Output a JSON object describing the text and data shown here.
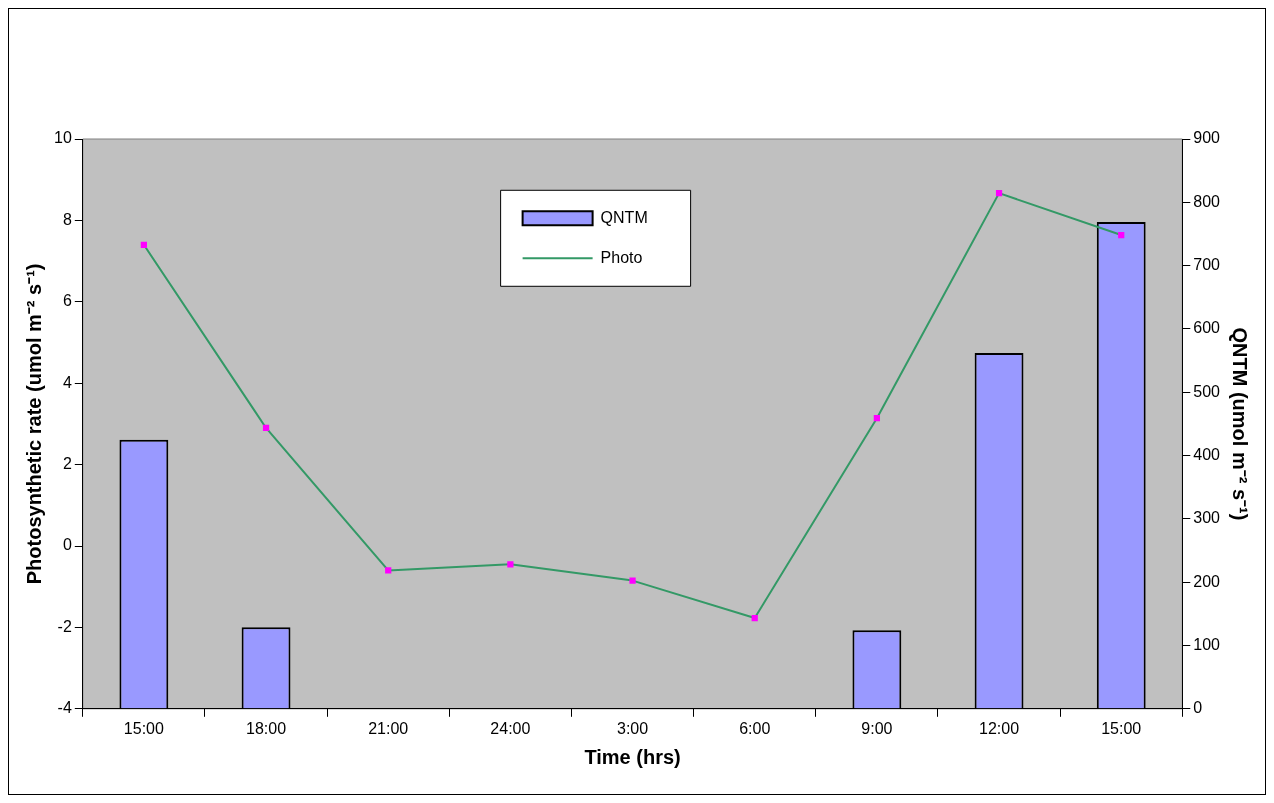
{
  "chart_data": {
    "type": "bar",
    "xlabel": "Time (hrs)",
    "ylabel": "Photosynthetic rate (umol m⁻² s⁻¹)",
    "y2label": "QNTM (umol m⁻² s⁻¹)",
    "categories": [
      "15:00",
      "18:00",
      "21:00",
      "24:00",
      "3:00",
      "6:00",
      "9:00",
      "12:00",
      "15:00"
    ],
    "series": [
      {
        "name": "QNTM",
        "axis": "y2",
        "color": "#9999ff",
        "values": [
          425,
          129,
          null,
          null,
          null,
          null,
          124,
          562,
          769
        ]
      },
      {
        "name": "Photo",
        "type": "line",
        "axis": "y",
        "color": "#339966",
        "marker": "square",
        "values": [
          7.4,
          2.9,
          -0.6,
          -0.45,
          -0.85,
          -1.77,
          3.14,
          8.67,
          7.64
        ]
      }
    ],
    "ylim": [
      -4,
      10
    ],
    "yticks": [
      -4,
      -2,
      0,
      2,
      4,
      6,
      8,
      10
    ],
    "y2lim": [
      0,
      900
    ],
    "y2ticks": [
      0,
      100,
      200,
      300,
      400,
      500,
      600,
      700,
      800,
      900
    ],
    "grid": false,
    "legend": "top"
  }
}
